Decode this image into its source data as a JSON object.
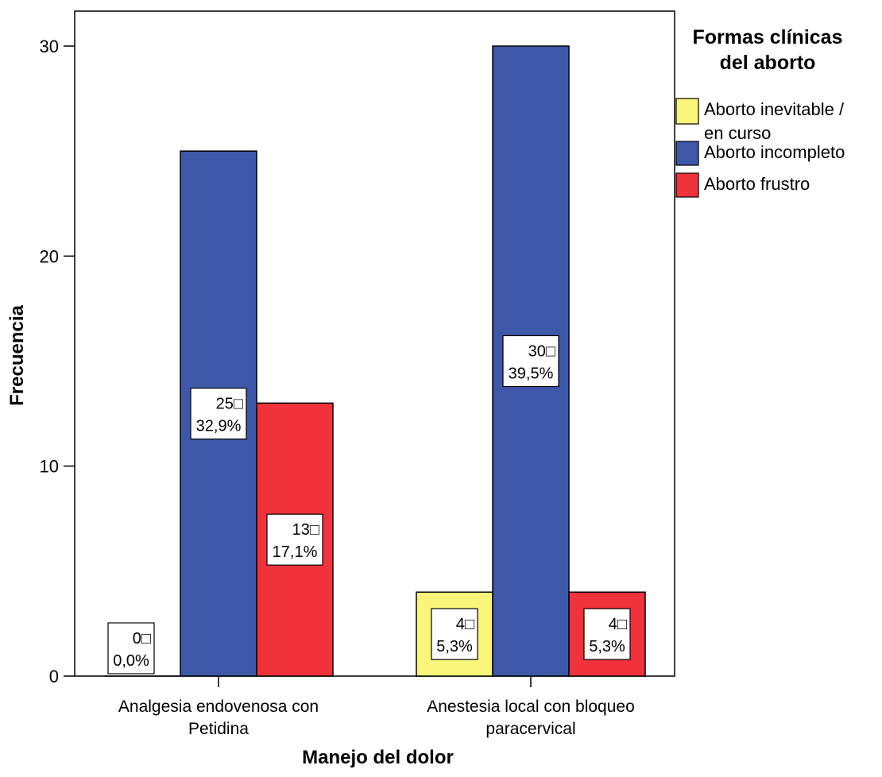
{
  "chart_data": {
    "type": "bar",
    "xlabel": "Manejo del dolor",
    "ylabel": "Frecuencia",
    "ylim": [
      0,
      30
    ],
    "yticks": [
      "0",
      "10",
      "20",
      "30"
    ],
    "categories": [
      [
        "Analgesia endovenosa con",
        "Petidina"
      ],
      [
        "Anestesia local con bloqueo",
        "paracervical"
      ]
    ],
    "legend": {
      "title": [
        "Formas clínicas",
        "del aborto"
      ],
      "placement": "right"
    },
    "series": [
      {
        "name": [
          "Aborto inevitable /",
          "en curso"
        ],
        "color": "#f9f57b",
        "values": [
          0,
          4
        ],
        "labels": [
          [
            "0□",
            "0,0%"
          ],
          [
            "4□",
            "5,3%"
          ]
        ]
      },
      {
        "name": [
          "Aborto incompleto"
        ],
        "color": "#3d57a9",
        "values": [
          25,
          30
        ],
        "labels": [
          [
            "25□",
            "32,9%"
          ],
          [
            "30□",
            "39,5%"
          ]
        ]
      },
      {
        "name": [
          "Aborto frustro"
        ],
        "color": "#ef323b",
        "values": [
          13,
          4
        ],
        "labels": [
          [
            "13□",
            "17,1%"
          ],
          [
            "4□",
            "5,3%"
          ]
        ]
      }
    ],
    "grid": false
  }
}
